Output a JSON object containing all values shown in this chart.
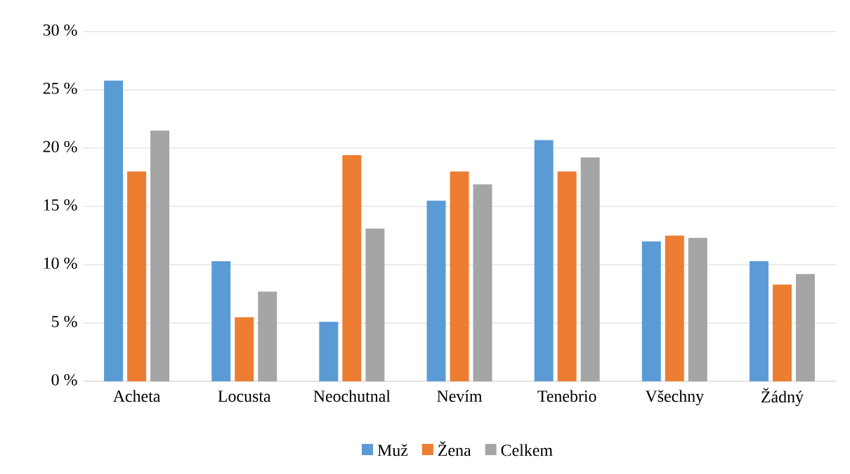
{
  "chart_data": {
    "type": "bar",
    "categories": [
      "Acheta",
      "Locusta",
      "Neochutnal",
      "Nevím",
      "Tenebrio",
      "Všechny",
      "Žádný"
    ],
    "series": [
      {
        "name": "Muž",
        "color": "#5b9bd5",
        "values": [
          25.8,
          10.3,
          5.1,
          15.5,
          20.7,
          12.0,
          10.3
        ]
      },
      {
        "name": "Žena",
        "color": "#ed7d31",
        "values": [
          18.0,
          5.5,
          19.4,
          18.0,
          18.0,
          12.5,
          8.3
        ]
      },
      {
        "name": "Celkem",
        "color": "#a5a5a5",
        "values": [
          21.5,
          7.7,
          13.1,
          16.9,
          19.2,
          12.3,
          9.2
        ]
      }
    ],
    "ylim": [
      0,
      30
    ],
    "yticks": [
      {
        "value": 0,
        "label": "0 %"
      },
      {
        "value": 5,
        "label": "5 %"
      },
      {
        "value": 10,
        "label": "10 %"
      },
      {
        "value": 15,
        "label": "15 %"
      },
      {
        "value": 20,
        "label": "20 %"
      },
      {
        "value": 25,
        "label": "25 %"
      },
      {
        "value": 30,
        "label": "30 %"
      }
    ],
    "grid": "y",
    "legend": "bottom"
  }
}
